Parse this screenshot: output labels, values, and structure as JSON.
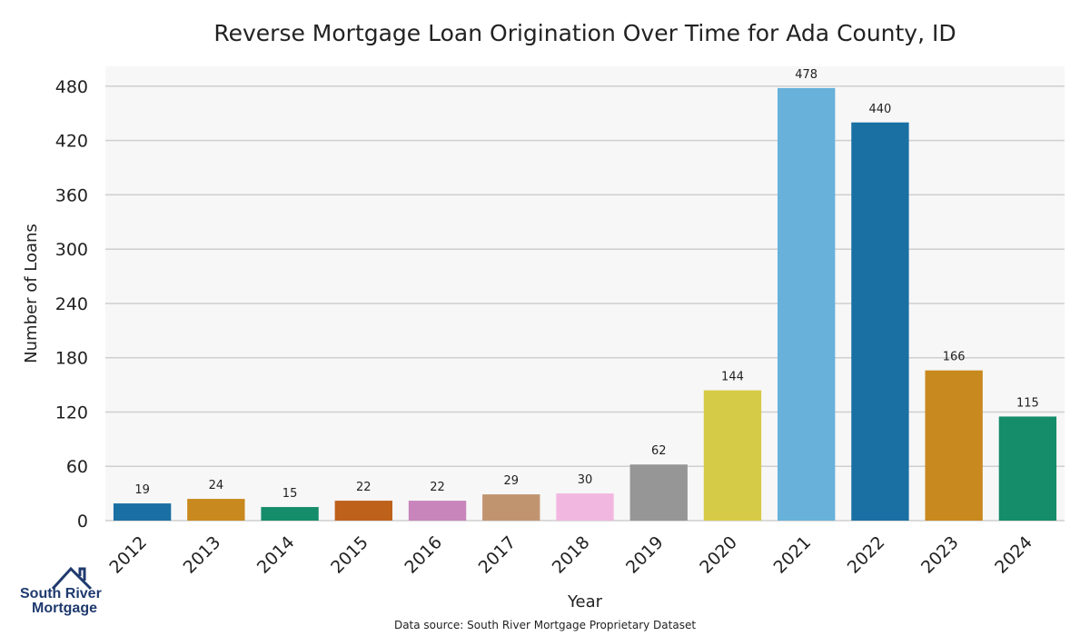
{
  "chart_data": {
    "type": "bar",
    "title": "Reverse Mortgage Loan Origination Over Time for Ada County, ID",
    "xlabel": "Year",
    "ylabel": "Number of Loans",
    "categories": [
      "2012",
      "2013",
      "2014",
      "2015",
      "2016",
      "2017",
      "2018",
      "2019",
      "2020",
      "2021",
      "2022",
      "2023",
      "2024"
    ],
    "values": [
      19,
      24,
      15,
      22,
      22,
      29,
      30,
      62,
      144,
      478,
      440,
      166,
      115
    ],
    "colors": [
      "#1a6fa3",
      "#c8891e",
      "#158c6a",
      "#be611b",
      "#c885bb",
      "#c19470",
      "#f2b7e0",
      "#969696",
      "#d6cb46",
      "#67b1db",
      "#1a6fa3",
      "#c8891e",
      "#158c6a"
    ],
    "yticks": [
      0,
      60,
      120,
      180,
      240,
      300,
      360,
      420,
      480
    ],
    "ylim": [
      0,
      502
    ],
    "grid": true,
    "data_labels": true
  },
  "footer": {
    "source": "Data source: South River Mortgage Proprietary Dataset"
  },
  "logo": {
    "line1": "South River",
    "line2": "Mortgage",
    "color": "#1f3a6e",
    "icon": "house-roof-icon"
  }
}
